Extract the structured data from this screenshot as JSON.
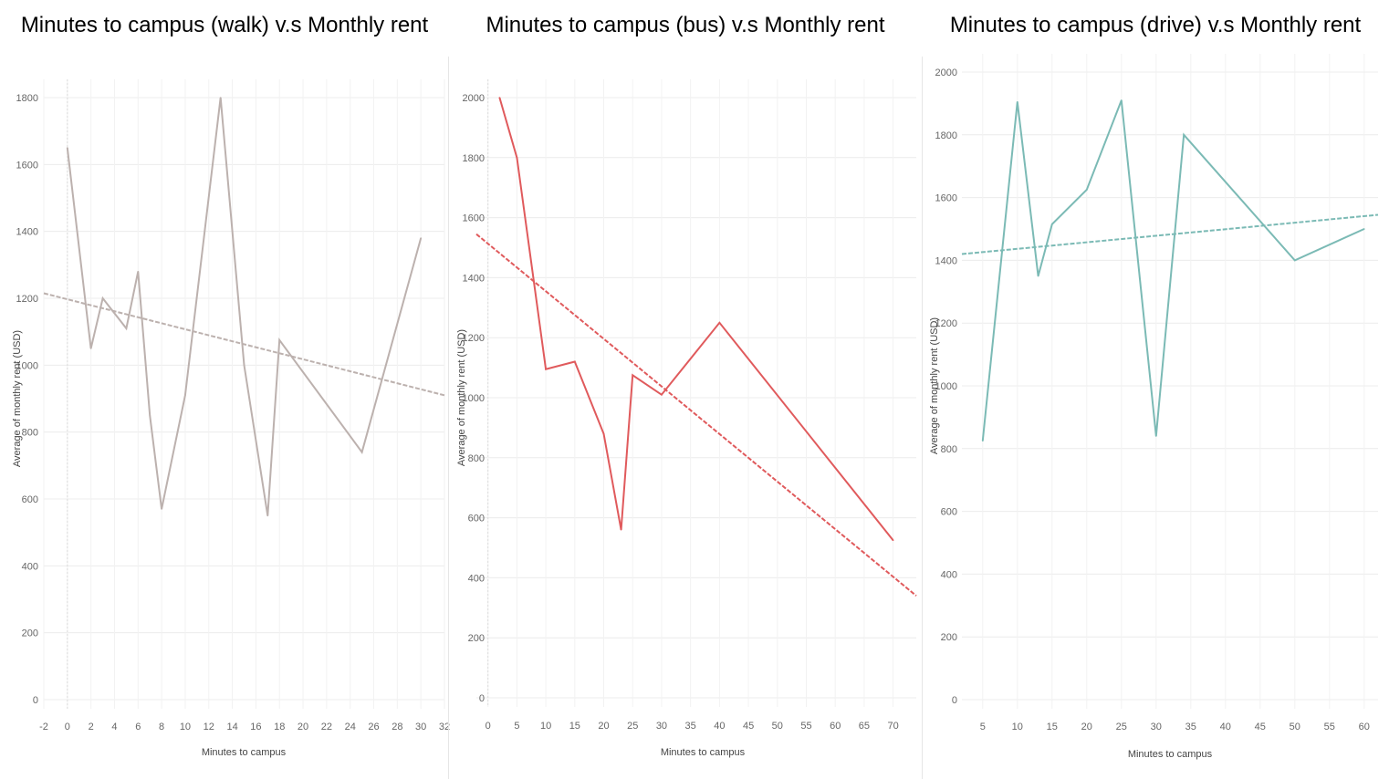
{
  "chart_data": [
    {
      "type": "line",
      "title": "Minutes to campus (walk) v.s Monthly rent",
      "xlabel": "Minutes to campus",
      "ylabel": "Average of monthly rent (USD)",
      "xlim": [
        -2,
        32
      ],
      "ylim": [
        0,
        1800
      ],
      "x_ticks": [
        -2,
        0,
        2,
        4,
        6,
        8,
        10,
        12,
        14,
        16,
        18,
        20,
        22,
        24,
        26,
        28,
        30,
        32
      ],
      "y_ticks": [
        0,
        200,
        400,
        600,
        800,
        1000,
        1200,
        1400,
        1600,
        1800
      ],
      "color": "#bcb1ae",
      "grid": true,
      "series": [
        {
          "x": [
            0,
            2,
            3,
            5,
            6,
            7,
            8,
            10,
            13,
            15,
            17,
            18,
            25,
            30
          ],
          "y": [
            1650,
            1050,
            1200,
            1110,
            1280,
            850,
            570,
            910,
            1800,
            1000,
            550,
            1075,
            740,
            1380
          ]
        }
      ],
      "trendline": {
        "x": [
          -2,
          32
        ],
        "y": [
          1215,
          910
        ]
      }
    },
    {
      "type": "line",
      "title": "Minutes to campus (bus) v.s Monthly rent",
      "xlabel": "Minutes to campus",
      "ylabel": "Average of monthly rent (USD)",
      "xlim": [
        -2,
        74
      ],
      "ylim": [
        0,
        2000
      ],
      "x_ticks": [
        0,
        5,
        10,
        15,
        20,
        25,
        30,
        35,
        40,
        45,
        50,
        55,
        60,
        65,
        70
      ],
      "y_ticks": [
        0,
        200,
        400,
        600,
        800,
        1000,
        1200,
        1400,
        1600,
        1800,
        2000
      ],
      "color": "#e05a5c",
      "grid": true,
      "series": [
        {
          "x": [
            2,
            5,
            10,
            15,
            20,
            23,
            25,
            30,
            40,
            70
          ],
          "y": [
            2000,
            1800,
            1095,
            1120,
            880,
            560,
            1075,
            1010,
            1250,
            525
          ]
        }
      ],
      "trendline": {
        "x": [
          -2,
          74
        ],
        "y": [
          1545,
          340
        ]
      }
    },
    {
      "type": "line",
      "title": "Minutes to campus (drive) v.s Monthly rent",
      "xlabel": "Minutes to campus",
      "ylabel": "Average of monthly rent (USD)",
      "xlim": [
        2,
        62
      ],
      "ylim": [
        0,
        2000
      ],
      "x_ticks": [
        5,
        10,
        15,
        20,
        25,
        30,
        35,
        40,
        45,
        50,
        55,
        60
      ],
      "y_ticks": [
        0,
        200,
        400,
        600,
        800,
        1000,
        1200,
        1400,
        1600,
        1800,
        2000
      ],
      "color": "#7bbab5",
      "grid": true,
      "series": [
        {
          "x": [
            5,
            10,
            13,
            15,
            20,
            25,
            30,
            34,
            50,
            60
          ],
          "y": [
            825,
            1905,
            1350,
            1515,
            1625,
            1910,
            840,
            1800,
            1400,
            1500
          ]
        }
      ],
      "trendline": {
        "x": [
          2,
          62
        ],
        "y": [
          1420,
          1545
        ]
      }
    }
  ]
}
